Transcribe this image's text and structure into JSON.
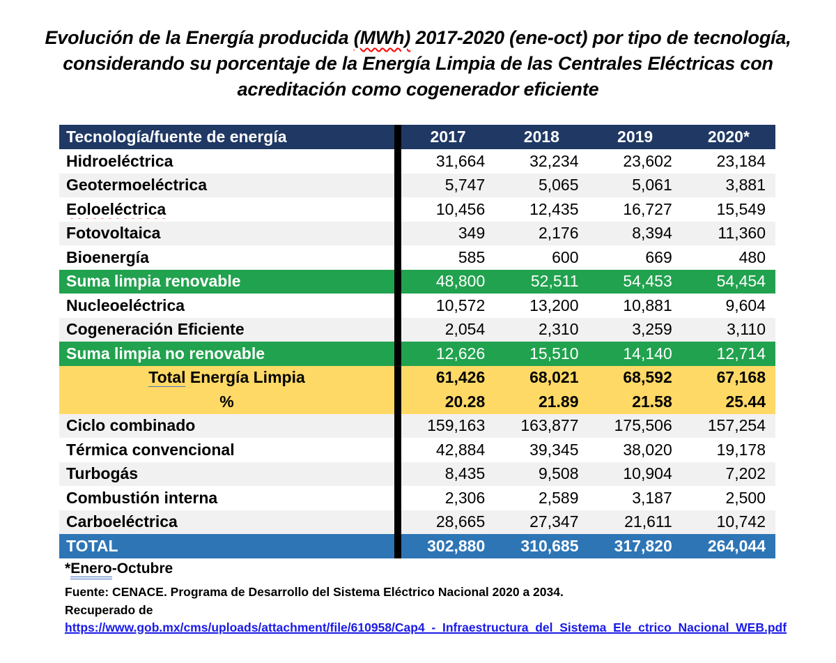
{
  "colors": {
    "header_bg": "#1F3864",
    "green": "#21A24E",
    "yellow": "#FFD966",
    "total_blue": "#2E75B6",
    "alt_row": "#F1F1F2",
    "link_blue": "#1A1AE8",
    "squiggle_red": "#FF0000",
    "grammar_blue": "#4472C4"
  },
  "title": {
    "line1_pre": "Evolución de la Energía producida ",
    "line1_wavy": "(MWh)",
    "line1_post": " 2017-2020 (ene-oct) por tipo de tecnología,",
    "line2": "considerando su porcentaje de la Energía Limpia de las Centrales Eléctricas con",
    "line3": "acreditación como cogenerador eficiente"
  },
  "table": {
    "header": {
      "label": "Tecnología/fuente de energía",
      "years": [
        "2017",
        "2018",
        "2019",
        "2020*"
      ]
    },
    "rows": [
      {
        "label": "Hidroeléctrica",
        "values": [
          "31,664",
          "32,234",
          "23,602",
          "23,184"
        ],
        "style": "plain"
      },
      {
        "label": "Geotermoeléctrica",
        "values": [
          "5,747",
          "5,065",
          "5,061",
          "3,881"
        ],
        "style": "alt",
        "misspelled": true
      },
      {
        "label": "Eoloeléctrica",
        "values": [
          "10,456",
          "12,435",
          "16,727",
          "15,549"
        ],
        "style": "plain",
        "misspelled": true
      },
      {
        "label": "Fotovoltaica",
        "values": [
          "349",
          "2,176",
          "8,394",
          "11,360"
        ],
        "style": "alt"
      },
      {
        "label": "Bioenergía",
        "values": [
          "585",
          "600",
          "669",
          "480"
        ],
        "style": "plain"
      },
      {
        "label": "Suma limpia renovable",
        "values": [
          "48,800",
          "52,511",
          "54,453",
          "54,454"
        ],
        "style": "green"
      },
      {
        "label": "Nucleoeléctrica",
        "values": [
          "10,572",
          "13,200",
          "10,881",
          "9,604"
        ],
        "style": "plain"
      },
      {
        "label": "Cogeneración Eficiente",
        "values": [
          "2,054",
          "2,310",
          "3,259",
          "3,110"
        ],
        "style": "alt"
      },
      {
        "label": "Suma limpia no renovable",
        "values": [
          "12,626",
          "15,510",
          "14,140",
          "12,714"
        ],
        "style": "green"
      },
      {
        "label": "Total Energía Limpia",
        "values": [
          "61,426",
          "68,021",
          "68,592",
          "67,168"
        ],
        "style": "yellow",
        "centered": true,
        "underline_word": "Total"
      },
      {
        "label": "%",
        "values": [
          "20.28",
          "21.89",
          "21.58",
          "25.44"
        ],
        "style": "yellow",
        "centered": true
      },
      {
        "label": "Ciclo combinado",
        "values": [
          "159,163",
          "163,877",
          "175,506",
          "157,254"
        ],
        "style": "alt"
      },
      {
        "label": "Térmica convencional",
        "values": [
          "42,884",
          "39,345",
          "38,020",
          "19,178"
        ],
        "style": "plain"
      },
      {
        "label": "Turbogás",
        "values": [
          "8,435",
          "9,508",
          "10,904",
          "7,202"
        ],
        "style": "alt",
        "misspelled": true
      },
      {
        "label": "Combustión interna",
        "values": [
          "2,306",
          "2,589",
          "3,187",
          "2,500"
        ],
        "style": "plain"
      },
      {
        "label": "Carboeléctrica",
        "values": [
          "28,665",
          "27,347",
          "21,611",
          "10,742"
        ],
        "style": "alt",
        "misspelled": true
      },
      {
        "label": "TOTAL",
        "values": [
          "302,880",
          "310,685",
          "317,820",
          "264,044"
        ],
        "style": "total"
      }
    ]
  },
  "footer": {
    "footnote_pre": "*",
    "footnote_word": "Enero",
    "footnote_post": "-Octubre",
    "source_line": "Fuente: CENACE. Programa de Desarrollo del Sistema Eléctrico Nacional 2020 a 2034.",
    "retrieved_label": "Recuperado de",
    "url": "https://www.gob.mx/cms/uploads/attachment/file/610958/Cap4_-_Infraestructura_del_Sistema_Ele_ctrico_Nacional_WEB.pdf"
  }
}
